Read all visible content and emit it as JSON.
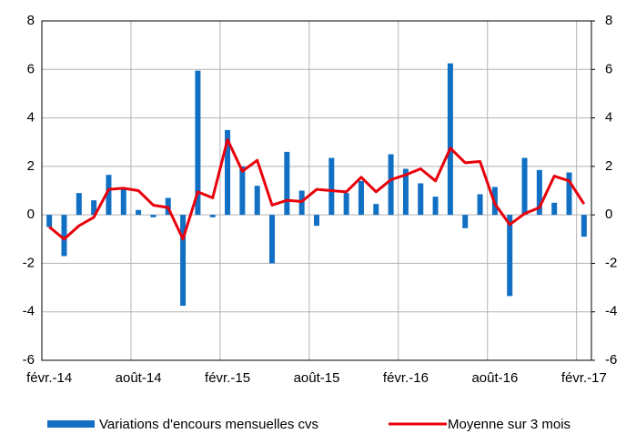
{
  "chart_data": {
    "type": "bar-line",
    "categories": [
      "févr.-14",
      null,
      null,
      null,
      null,
      null,
      "août-14",
      null,
      null,
      null,
      null,
      null,
      "févr.-15",
      null,
      null,
      null,
      null,
      null,
      "août-15",
      null,
      null,
      null,
      null,
      null,
      "févr.-16",
      null,
      null,
      null,
      null,
      null,
      "août-16",
      null,
      null,
      null,
      null,
      null,
      "févr.-17"
    ],
    "series": [
      {
        "name": "Variations d'encours mensuelles cvs",
        "type": "bar",
        "color": "#1170c4",
        "values": [
          -0.5,
          -1.7,
          0.9,
          0.6,
          1.65,
          1.1,
          0.2,
          -0.1,
          0.7,
          -3.75,
          5.95,
          -0.1,
          3.5,
          2.0,
          1.2,
          -2.0,
          2.6,
          1.0,
          -0.45,
          2.35,
          0.9,
          1.4,
          0.45,
          2.5,
          1.9,
          1.3,
          0.75,
          6.25,
          -0.55,
          0.85,
          1.15,
          -3.35,
          2.35,
          1.85,
          0.5,
          1.75,
          -0.9
        ]
      },
      {
        "name": "Moyenne sur 3 mois",
        "type": "line",
        "color": "#e8000b",
        "values": [
          -0.5,
          -1.0,
          -0.45,
          -0.1,
          1.05,
          1.1,
          1.0,
          0.4,
          0.3,
          -1.0,
          0.95,
          0.7,
          3.1,
          1.8,
          2.25,
          0.4,
          0.6,
          0.55,
          1.05,
          1.0,
          0.95,
          1.55,
          0.95,
          1.45,
          1.65,
          1.9,
          1.4,
          2.75,
          2.15,
          2.2,
          0.45,
          -0.4,
          0.05,
          0.3,
          1.6,
          1.4,
          0.45
        ]
      }
    ],
    "ylim": [
      -6,
      8
    ],
    "yticks": [
      -6,
      -4,
      -2,
      0,
      2,
      4,
      6,
      8
    ],
    "y2lim": [
      -6,
      8
    ],
    "y2ticks": [
      -6,
      -4,
      -2,
      0,
      2,
      4,
      6,
      8
    ],
    "grid": true
  }
}
